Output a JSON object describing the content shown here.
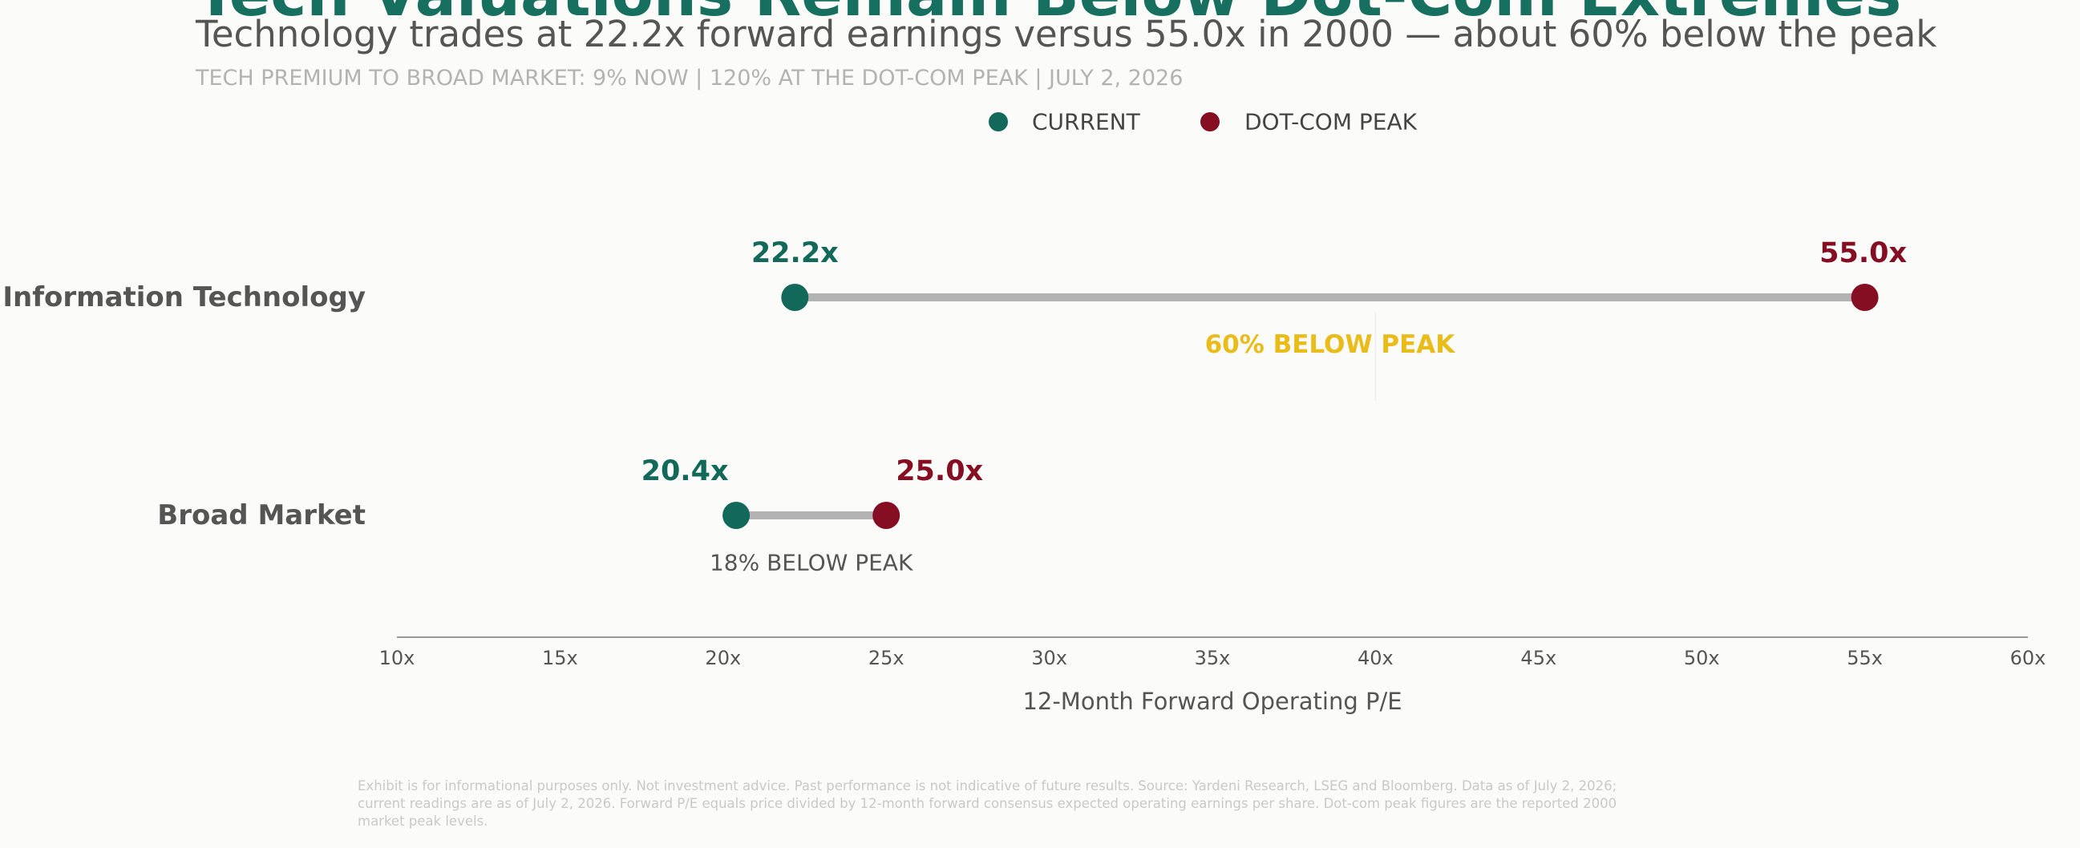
{
  "title": "Tech Valuations Remain Below Dot-Com Extremes",
  "subtitle": "Technology trades at 22.2x forward earnings versus 55.0x in 2000 — about 60% below the peak",
  "kicker": "TECH PREMIUM TO BROAD MARKET: 9% NOW  |  120% AT THE DOT-COM PEAK  |  JULY 2, 2026",
  "footnote": "Exhibit is for informational purposes only. Not investment advice. Past performance is not indicative of future results. Source: Yardeni Research, LSEG and Bloomberg. Data as of July 2, 2026; current readings are as of July 2, 2026. Forward P/E equals price divided by 12-month forward consensus expected operating earnings per share. Dot-com peak figures are the reported 2000 market peak levels.",
  "colors": {
    "current": "#12695a",
    "peak": "#850e22",
    "connector": "#b3b3b3",
    "highlight": "#e9bc19",
    "category_label": "#555555",
    "axis": "#999999",
    "tick_label": "#555555"
  },
  "chart_data": {
    "type": "dumbbell",
    "legend": {
      "position": "top-center",
      "entries": [
        {
          "label": "CURRENT",
          "color_key": "current"
        },
        {
          "label": "DOT-COM PEAK",
          "color_key": "peak"
        }
      ]
    },
    "categories": [
      "Information Technology",
      "Broad Market"
    ],
    "series": [
      {
        "name": "CURRENT",
        "values": [
          22.2,
          20.4
        ],
        "labels": [
          "22.2x",
          "20.4x"
        ]
      },
      {
        "name": "DOT-COM PEAK",
        "values": [
          55.0,
          25.0
        ],
        "labels": [
          "55.0x",
          "25.0x"
        ]
      }
    ],
    "gap_labels": [
      "60% BELOW PEAK",
      "18% BELOW PEAK"
    ],
    "gap_highlight": [
      true,
      false
    ],
    "xlabel": "12-Month Forward Operating P/E",
    "xlim": [
      10,
      60
    ],
    "xticks": [
      10,
      15,
      20,
      25,
      30,
      35,
      40,
      45,
      50,
      55,
      60
    ],
    "xtick_labels": [
      "10x",
      "15x",
      "20x",
      "25x",
      "30x",
      "35x",
      "40x",
      "45x",
      "50x",
      "55x",
      "60x"
    ],
    "grid": false
  }
}
